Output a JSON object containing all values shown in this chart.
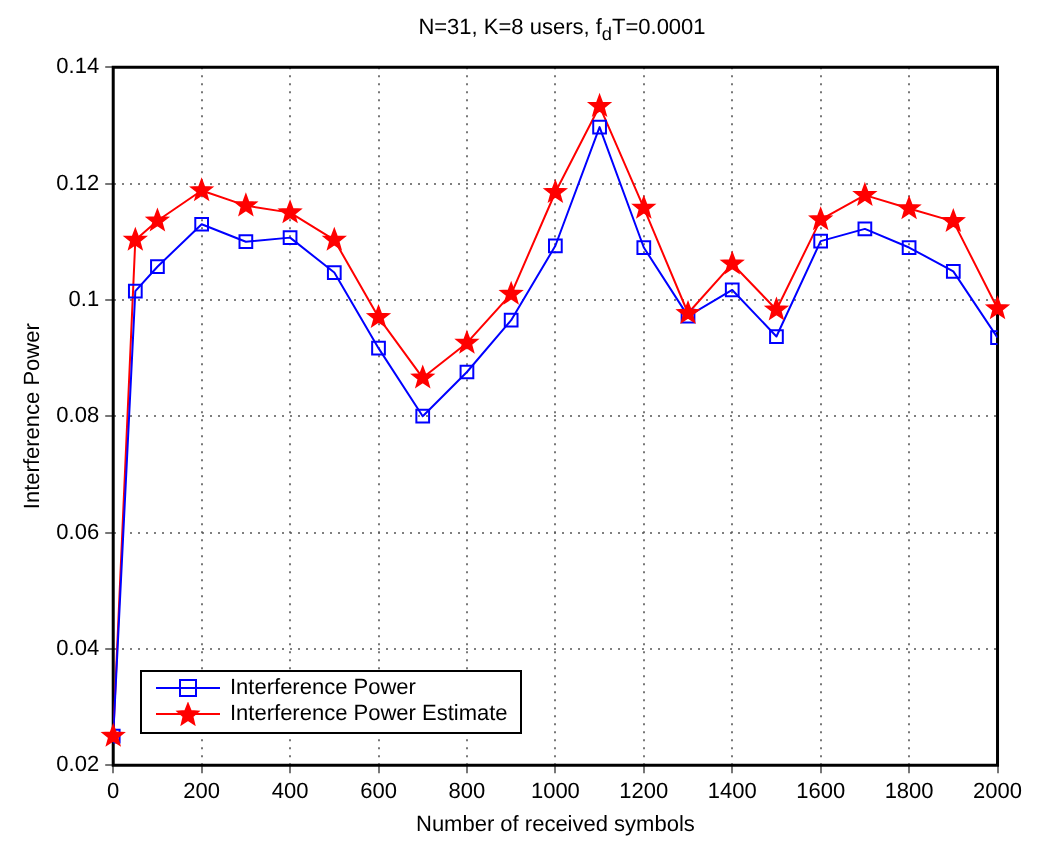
{
  "chart_data": {
    "type": "line",
    "title": "N=31, K=8 users, f$_{d}$T=0.0001",
    "xlabel": "Number of received symbols",
    "ylabel": "Interference Power",
    "x": [
      0,
      50,
      100,
      200,
      300,
      400,
      500,
      600,
      700,
      800,
      900,
      1000,
      1100,
      1200,
      1300,
      1400,
      1500,
      1600,
      1700,
      1800,
      1900,
      2000
    ],
    "series": [
      {
        "name": "Interference Power",
        "color": "#0000ff",
        "marker": "square",
        "values": [
          0.025,
          0.1015,
          0.1057,
          0.113,
          0.11,
          0.1107,
          0.1047,
          0.0917,
          0.08,
          0.0876,
          0.0965,
          0.1093,
          0.1297,
          0.109,
          0.0972,
          0.1017,
          0.0937,
          0.1101,
          0.1122,
          0.109,
          0.1049,
          0.0935
        ]
      },
      {
        "name": "Interference Power Estimate",
        "color": "#ff0000",
        "marker": "star",
        "values": [
          0.025,
          0.1103,
          0.1136,
          0.1188,
          0.1162,
          0.115,
          0.1103,
          0.097,
          0.0866,
          0.0926,
          0.101,
          0.1185,
          0.1333,
          0.1158,
          0.0977,
          0.1062,
          0.0983,
          0.1138,
          0.118,
          0.1157,
          0.1135,
          0.0985
        ]
      }
    ],
    "xlim": [
      0,
      2000
    ],
    "xticks": [
      0,
      200,
      400,
      600,
      800,
      1000,
      1200,
      1400,
      1600,
      1800,
      2000
    ],
    "ylim": [
      0.02,
      0.14
    ],
    "yticks": [
      0.02,
      0.04,
      0.06,
      0.08,
      0.1,
      0.12,
      0.14
    ],
    "grid": true,
    "legend": "bottom left",
    "line_style": "solid"
  }
}
